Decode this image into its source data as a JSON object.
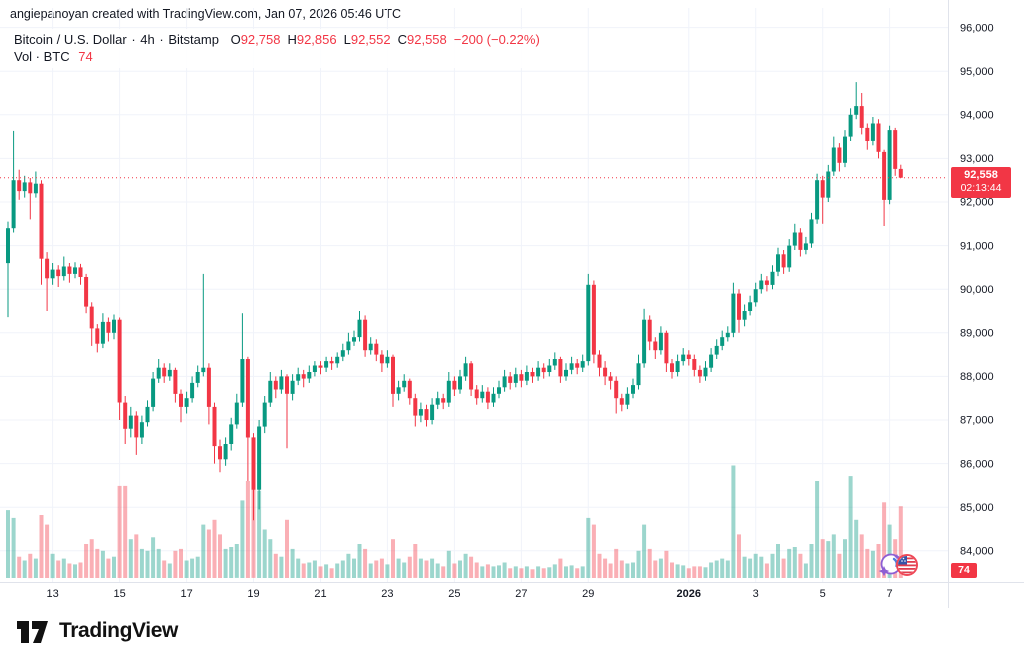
{
  "attribution": "angiepanoyan created with TradingView.com, Jan 07, 2026 05:46 UTC",
  "legend": {
    "symbol_title": "Bitcoin / U.S. Dollar",
    "dot1": "·",
    "interval": "4h",
    "dot2": "·",
    "exchange": "Bitstamp",
    "open_label": "O",
    "open_value": "92,758",
    "high_label": "H",
    "high_value": "92,856",
    "low_label": "L",
    "low_value": "92,552",
    "close_label": "C",
    "close_value": "92,558",
    "change_value": "−200 (−0.22%)",
    "volume_label": "Vol · BTC",
    "volume_value": "74"
  },
  "price_badge": {
    "price": "92,558",
    "countdown": "02:13:44"
  },
  "volume_badge": {
    "value": "74"
  },
  "logo": {
    "brand": "TradingView"
  },
  "icons": [
    "sparkle-event-icon",
    "us-flag-event-icon"
  ],
  "colors": {
    "up": "#089981",
    "down": "#f23645",
    "volume_up": "rgba(8,153,129,0.40)",
    "volume_down": "rgba(242,54,69,0.40)",
    "grid": "#f0f3fa",
    "separator": "#e0e3eb",
    "axis_text": "#131722",
    "price_line": "#f23645",
    "badge_bg": "#f23645"
  },
  "chart_data": {
    "type": "candlestick",
    "title": "Bitcoin / U.S. Dollar",
    "exchange": "Bitstamp",
    "interval": "4h",
    "volume_unit": "BTC",
    "legend_ohlc": {
      "open": 92758,
      "high": 92856,
      "low": 92552,
      "close": 92558,
      "change": -200,
      "change_pct": -0.22
    },
    "last_price": 92558,
    "current_candle_volume": 74,
    "y_axis": {
      "levels": [
        {
          "price": 96000,
          "label": "96,000"
        },
        {
          "price": 95000,
          "label": "95,000"
        },
        {
          "price": 94000,
          "label": "94,000"
        },
        {
          "price": 93000,
          "label": "93,000"
        },
        {
          "price": 92000,
          "label": "92,000"
        },
        {
          "price": 91000,
          "label": "91,000"
        },
        {
          "price": 90000,
          "label": "90,000"
        },
        {
          "price": 89000,
          "label": "89,000"
        },
        {
          "price": 88000,
          "label": "88,000"
        },
        {
          "price": 87000,
          "label": "87,000"
        },
        {
          "price": 86000,
          "label": "86,000"
        },
        {
          "price": 85000,
          "label": "85,000"
        },
        {
          "price": 84000,
          "label": "84,000"
        }
      ]
    },
    "x_axis": {
      "ticks": [
        {
          "i": 8,
          "label": "13"
        },
        {
          "i": 20,
          "label": "15"
        },
        {
          "i": 32,
          "label": "17"
        },
        {
          "i": 44,
          "label": "19"
        },
        {
          "i": 56,
          "label": "21"
        },
        {
          "i": 68,
          "label": "23"
        },
        {
          "i": 80,
          "label": "25"
        },
        {
          "i": 92,
          "label": "27"
        },
        {
          "i": 104,
          "label": "29"
        },
        {
          "i": 122,
          "label": "2026",
          "bold": true
        },
        {
          "i": 134,
          "label": "3"
        },
        {
          "i": 146,
          "label": "5"
        },
        {
          "i": 158,
          "label": "7"
        }
      ]
    },
    "candles_format": [
      "open",
      "high",
      "low",
      "close",
      "volume"
    ],
    "candles": [
      [
        90600,
        91550,
        89360,
        91400,
        70
      ],
      [
        91400,
        93630,
        91300,
        92500,
        62
      ],
      [
        92500,
        92740,
        92050,
        92250,
        22
      ],
      [
        92250,
        92600,
        92100,
        92450,
        18
      ],
      [
        92450,
        92550,
        91600,
        92200,
        25
      ],
      [
        92200,
        92700,
        92100,
        92420,
        20
      ],
      [
        92420,
        92500,
        90100,
        90700,
        65
      ],
      [
        90700,
        90850,
        89500,
        90250,
        55
      ],
      [
        90250,
        90600,
        90100,
        90450,
        25
      ],
      [
        90450,
        90550,
        90050,
        90300,
        18
      ],
      [
        90300,
        90750,
        90200,
        90520,
        20
      ],
      [
        90520,
        90600,
        90150,
        90350,
        15
      ],
      [
        90350,
        90620,
        90250,
        90500,
        14
      ],
      [
        90500,
        90580,
        90100,
        90280,
        16
      ],
      [
        90280,
        90350,
        89450,
        89600,
        35
      ],
      [
        89600,
        89700,
        88700,
        89100,
        40
      ],
      [
        89100,
        89200,
        88550,
        88750,
        30
      ],
      [
        88750,
        89450,
        88650,
        89250,
        28
      ],
      [
        89250,
        89350,
        88800,
        89000,
        20
      ],
      [
        89000,
        89420,
        88850,
        89300,
        22
      ],
      [
        89300,
        89350,
        87000,
        87400,
        95
      ],
      [
        87400,
        87550,
        86450,
        86800,
        95
      ],
      [
        86800,
        87300,
        86600,
        87100,
        40
      ],
      [
        87100,
        87200,
        86200,
        86600,
        45
      ],
      [
        86600,
        87100,
        86450,
        86950,
        30
      ],
      [
        86950,
        87450,
        86850,
        87300,
        28
      ],
      [
        87300,
        88100,
        87200,
        87950,
        42
      ],
      [
        87950,
        88400,
        87850,
        88200,
        30
      ],
      [
        88200,
        88300,
        87850,
        88000,
        18
      ],
      [
        88000,
        88300,
        87900,
        88150,
        15
      ],
      [
        88150,
        88200,
        87400,
        87600,
        28
      ],
      [
        87600,
        87700,
        86950,
        87300,
        30
      ],
      [
        87300,
        87650,
        87150,
        87500,
        18
      ],
      [
        87500,
        88000,
        87400,
        87850,
        20
      ],
      [
        87850,
        88250,
        87750,
        88100,
        22
      ],
      [
        88100,
        90350,
        88000,
        88200,
        55
      ],
      [
        88200,
        88300,
        86900,
        87300,
        50
      ],
      [
        87300,
        87400,
        86000,
        86400,
        60
      ],
      [
        86400,
        86550,
        85800,
        86100,
        45
      ],
      [
        86100,
        86600,
        85950,
        86450,
        30
      ],
      [
        86450,
        87050,
        86300,
        86900,
        32
      ],
      [
        86900,
        87600,
        86800,
        87400,
        35
      ],
      [
        87400,
        89450,
        87300,
        88400,
        80
      ],
      [
        88400,
        88450,
        85600,
        86600,
        100
      ],
      [
        86600,
        86700,
        84700,
        85400,
        115
      ],
      [
        85400,
        87000,
        84950,
        86850,
        90
      ],
      [
        86850,
        87550,
        86700,
        87400,
        50
      ],
      [
        87400,
        88100,
        87300,
        87900,
        40
      ],
      [
        87900,
        88000,
        87500,
        87700,
        25
      ],
      [
        87700,
        88150,
        87600,
        88000,
        22
      ],
      [
        88000,
        88050,
        86350,
        87600,
        60
      ],
      [
        87600,
        88050,
        87450,
        87900,
        30
      ],
      [
        87900,
        88200,
        87800,
        88050,
        20
      ],
      [
        88050,
        88150,
        87750,
        87950,
        15
      ],
      [
        87950,
        88250,
        87850,
        88100,
        16
      ],
      [
        88100,
        88350,
        88000,
        88250,
        18
      ],
      [
        88250,
        88350,
        88050,
        88200,
        12
      ],
      [
        88200,
        88450,
        88100,
        88350,
        14
      ],
      [
        88350,
        88450,
        88150,
        88300,
        10
      ],
      [
        88300,
        88550,
        88200,
        88450,
        15
      ],
      [
        88450,
        88750,
        88350,
        88600,
        18
      ],
      [
        88600,
        89000,
        88500,
        88800,
        25
      ],
      [
        88800,
        89050,
        88700,
        88900,
        20
      ],
      [
        88900,
        89500,
        88800,
        89300,
        35
      ],
      [
        89300,
        89400,
        88450,
        88600,
        30
      ],
      [
        88600,
        88900,
        88500,
        88750,
        15
      ],
      [
        88750,
        88850,
        88350,
        88500,
        18
      ],
      [
        88500,
        88600,
        88100,
        88300,
        20
      ],
      [
        88300,
        88600,
        88200,
        88450,
        14
      ],
      [
        88450,
        88500,
        87300,
        87600,
        40
      ],
      [
        87600,
        87900,
        87450,
        87750,
        20
      ],
      [
        87750,
        88050,
        87650,
        87900,
        16
      ],
      [
        87900,
        87950,
        87350,
        87500,
        22
      ],
      [
        87500,
        87600,
        86850,
        87100,
        35
      ],
      [
        87100,
        87400,
        86950,
        87250,
        20
      ],
      [
        87250,
        87350,
        86850,
        87000,
        18
      ],
      [
        87000,
        87500,
        86900,
        87350,
        20
      ],
      [
        87350,
        87650,
        87250,
        87500,
        15
      ],
      [
        87500,
        87600,
        87250,
        87400,
        12
      ],
      [
        87400,
        88100,
        87300,
        87900,
        28
      ],
      [
        87900,
        88000,
        87550,
        87700,
        15
      ],
      [
        87700,
        88150,
        87600,
        88000,
        18
      ],
      [
        88000,
        88450,
        87900,
        88300,
        25
      ],
      [
        88300,
        88350,
        87550,
        87700,
        22
      ],
      [
        87700,
        87800,
        87350,
        87500,
        16
      ],
      [
        87500,
        87800,
        87400,
        87650,
        12
      ],
      [
        87650,
        87750,
        87250,
        87400,
        14
      ],
      [
        87400,
        87750,
        87300,
        87600,
        12
      ],
      [
        87600,
        87900,
        87500,
        87750,
        13
      ],
      [
        87750,
        88150,
        87650,
        88000,
        16
      ],
      [
        88000,
        88100,
        87700,
        87850,
        10
      ],
      [
        87850,
        88200,
        87750,
        88050,
        12
      ],
      [
        88050,
        88150,
        87750,
        87900,
        10
      ],
      [
        87900,
        88250,
        87800,
        88100,
        12
      ],
      [
        88100,
        88200,
        87850,
        88000,
        9
      ],
      [
        88000,
        88350,
        87900,
        88200,
        12
      ],
      [
        88200,
        88300,
        87950,
        88100,
        10
      ],
      [
        88100,
        88400,
        88000,
        88250,
        11
      ],
      [
        88250,
        88550,
        88150,
        88400,
        14
      ],
      [
        88400,
        88450,
        87850,
        88000,
        20
      ],
      [
        88000,
        88300,
        87900,
        88150,
        12
      ],
      [
        88150,
        88450,
        88050,
        88300,
        13
      ],
      [
        88300,
        88400,
        88050,
        88200,
        10
      ],
      [
        88200,
        88500,
        88100,
        88350,
        12
      ],
      [
        88350,
        90350,
        88250,
        90100,
        62
      ],
      [
        90100,
        90200,
        88300,
        88500,
        55
      ],
      [
        88500,
        88600,
        88000,
        88200,
        25
      ],
      [
        88200,
        88350,
        87800,
        88000,
        20
      ],
      [
        88000,
        88100,
        87700,
        87900,
        15
      ],
      [
        87900,
        88000,
        87150,
        87500,
        30
      ],
      [
        87500,
        87600,
        87200,
        87350,
        18
      ],
      [
        87350,
        87750,
        87250,
        87600,
        15
      ],
      [
        87600,
        87950,
        87500,
        87800,
        16
      ],
      [
        87800,
        88500,
        87700,
        88300,
        28
      ],
      [
        88300,
        89550,
        88200,
        89300,
        55
      ],
      [
        89300,
        89400,
        88600,
        88800,
        30
      ],
      [
        88800,
        88900,
        88400,
        88600,
        18
      ],
      [
        88600,
        89150,
        88500,
        89000,
        20
      ],
      [
        89000,
        89050,
        88100,
        88300,
        28
      ],
      [
        88300,
        88400,
        87950,
        88100,
        16
      ],
      [
        88100,
        88500,
        88000,
        88350,
        14
      ],
      [
        88350,
        88650,
        88250,
        88500,
        13
      ],
      [
        88500,
        88600,
        88250,
        88400,
        10
      ],
      [
        88400,
        88500,
        88000,
        88150,
        12
      ],
      [
        88150,
        88250,
        87850,
        88000,
        12
      ],
      [
        88000,
        88350,
        87900,
        88200,
        11
      ],
      [
        88200,
        88650,
        88100,
        88500,
        16
      ],
      [
        88500,
        88850,
        88400,
        88700,
        18
      ],
      [
        88700,
        89050,
        88600,
        88900,
        20
      ],
      [
        88900,
        89150,
        88800,
        89000,
        18
      ],
      [
        89000,
        90150,
        88900,
        89900,
        116
      ],
      [
        89900,
        90000,
        89000,
        89300,
        45
      ],
      [
        89300,
        89650,
        89150,
        89500,
        22
      ],
      [
        89500,
        89850,
        89400,
        89700,
        20
      ],
      [
        89700,
        90150,
        89600,
        90000,
        25
      ],
      [
        90000,
        90350,
        89900,
        90200,
        22
      ],
      [
        90200,
        90300,
        89950,
        90100,
        15
      ],
      [
        90100,
        90550,
        90000,
        90400,
        25
      ],
      [
        90400,
        90950,
        90300,
        90800,
        35
      ],
      [
        90800,
        90900,
        90350,
        90500,
        20
      ],
      [
        90500,
        91150,
        90400,
        91000,
        30
      ],
      [
        91000,
        91500,
        90900,
        91300,
        32
      ],
      [
        91300,
        91400,
        90750,
        90900,
        25
      ],
      [
        90900,
        91200,
        90800,
        91050,
        15
      ],
      [
        91050,
        91750,
        90950,
        91600,
        35
      ],
      [
        91600,
        92650,
        91500,
        92500,
        100
      ],
      [
        92500,
        92600,
        91500,
        92100,
        40
      ],
      [
        92100,
        92850,
        92000,
        92700,
        38
      ],
      [
        92700,
        93500,
        92600,
        93250,
        45
      ],
      [
        93250,
        93350,
        92700,
        92900,
        25
      ],
      [
        92900,
        93650,
        92800,
        93500,
        40
      ],
      [
        93500,
        94150,
        93400,
        94000,
        105
      ],
      [
        94000,
        94750,
        93900,
        94200,
        60
      ],
      [
        94200,
        94500,
        93550,
        93700,
        45
      ],
      [
        93700,
        93800,
        93200,
        93400,
        30
      ],
      [
        93400,
        93950,
        93300,
        93800,
        28
      ],
      [
        93800,
        93900,
        93000,
        93150,
        35
      ],
      [
        93150,
        93200,
        91450,
        92050,
        78
      ],
      [
        92050,
        93750,
        91950,
        93650,
        55
      ],
      [
        93650,
        93700,
        92600,
        92760,
        40
      ],
      [
        92760,
        92856,
        92552,
        92558,
        74
      ]
    ]
  }
}
